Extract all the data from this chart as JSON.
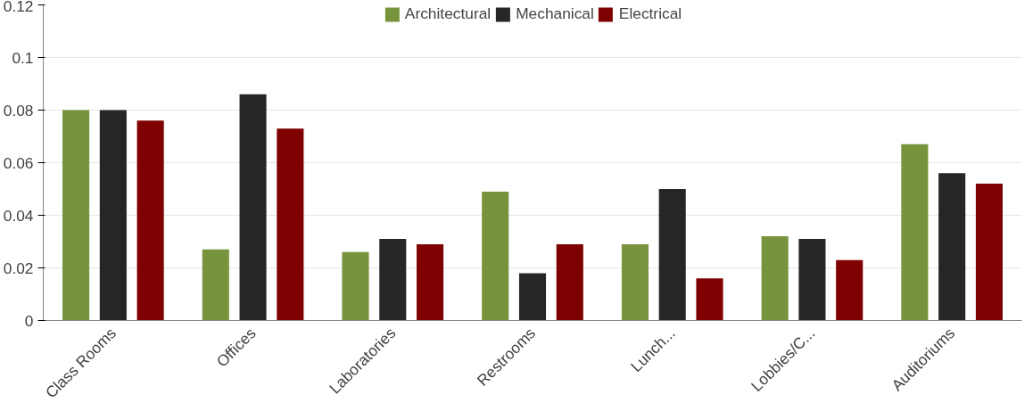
{
  "chart_data": {
    "type": "bar",
    "categories": [
      "Class Rooms",
      "Offices",
      "Laboratories",
      "Restrooms",
      "Lunch...",
      "Lobbies/C...",
      "Auditoriums"
    ],
    "series": [
      {
        "name": "Architectural",
        "color": "#77933c",
        "values": [
          0.08,
          0.027,
          0.026,
          0.049,
          0.029,
          0.032,
          0.067
        ]
      },
      {
        "name": "Mechanical",
        "color": "#262626",
        "values": [
          0.08,
          0.086,
          0.031,
          0.018,
          0.05,
          0.031,
          0.056
        ]
      },
      {
        "name": "Electrical",
        "color": "#7f0000",
        "values": [
          0.076,
          0.073,
          0.029,
          0.029,
          0.016,
          0.023,
          0.052
        ]
      }
    ],
    "ylim": [
      0,
      0.12
    ],
    "yticks": [
      0,
      0.02,
      0.04,
      0.06,
      0.08,
      0.1,
      0.12
    ],
    "grid": "y",
    "legend": "top"
  }
}
